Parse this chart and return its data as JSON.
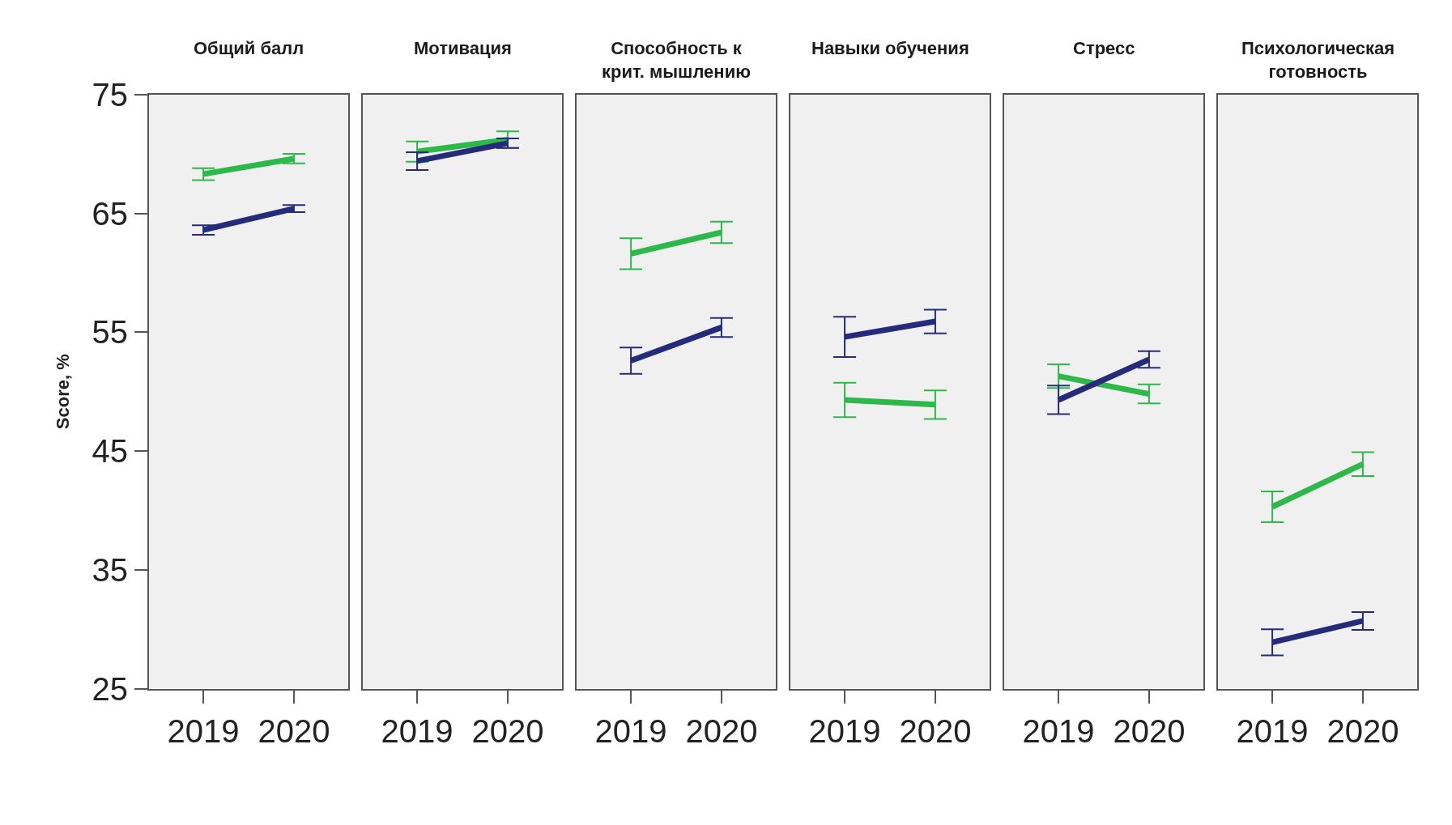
{
  "chart_data": [
    {
      "type": "line",
      "title": "Общий балл",
      "ylabel": "Score, %",
      "categories": [
        "2019",
        "2020"
      ],
      "ylim": [
        25,
        75
      ],
      "yticks": [
        25,
        35,
        45,
        55,
        65,
        75
      ],
      "grid": false,
      "marker": "none",
      "line_style": "solid",
      "series": [
        {
          "color": "#2db84a",
          "values": [
            68.3,
            69.6
          ],
          "errors": [
            0.5,
            0.4
          ]
        },
        {
          "color": "#262a7a",
          "values": [
            63.6,
            65.4
          ],
          "errors": [
            0.4,
            0.3
          ]
        }
      ]
    },
    {
      "type": "line",
      "title": "Мотивация",
      "categories": [
        "2019",
        "2020"
      ],
      "ylim": [
        25,
        75
      ],
      "yticks": [
        25,
        35,
        45,
        55,
        65,
        75
      ],
      "tick_labels": "x",
      "grid": false,
      "marker": "none",
      "line_style": "solid",
      "series": [
        {
          "color": "#2db84a",
          "values": [
            70.2,
            71.2
          ],
          "errors": [
            0.85,
            0.7
          ]
        },
        {
          "color": "#262a7a",
          "values": [
            69.4,
            70.9
          ],
          "errors": [
            0.75,
            0.4
          ]
        }
      ]
    },
    {
      "type": "line",
      "title": "Способность к\nкрит. мышлению",
      "categories": [
        "2019",
        "2020"
      ],
      "ylim": [
        25,
        75
      ],
      "yticks": [
        25,
        35,
        45,
        55,
        65,
        75
      ],
      "tick_labels": "x",
      "grid": false,
      "marker": "none",
      "line_style": "solid",
      "series": [
        {
          "color": "#2db84a",
          "values": [
            61.6,
            63.4
          ],
          "errors": [
            1.3,
            0.9
          ]
        },
        {
          "color": "#262a7a",
          "values": [
            52.6,
            55.4
          ],
          "errors": [
            1.1,
            0.8
          ]
        }
      ]
    },
    {
      "type": "line",
      "title": "Навыки обучения",
      "categories": [
        "2019",
        "2020"
      ],
      "ylim": [
        25,
        75
      ],
      "yticks": [
        25,
        35,
        45,
        55,
        65,
        75
      ],
      "tick_labels": "x",
      "grid": false,
      "marker": "none",
      "line_style": "solid",
      "series": [
        {
          "color": "#2db84a",
          "values": [
            49.3,
            48.9
          ],
          "errors": [
            1.45,
            1.2
          ]
        },
        {
          "color": "#262a7a",
          "values": [
            54.6,
            55.9
          ],
          "errors": [
            1.7,
            1.0
          ]
        }
      ]
    },
    {
      "type": "line",
      "title": "Стресс",
      "categories": [
        "2019",
        "2020"
      ],
      "ylim": [
        25,
        75
      ],
      "yticks": [
        25,
        35,
        45,
        55,
        65,
        75
      ],
      "tick_labels": "x",
      "grid": false,
      "marker": "none",
      "line_style": "solid",
      "series": [
        {
          "color": "#2db84a",
          "values": [
            51.3,
            49.8
          ],
          "errors": [
            1.0,
            0.8
          ]
        },
        {
          "color": "#262a7a",
          "values": [
            49.3,
            52.7
          ],
          "errors": [
            1.2,
            0.7
          ]
        }
      ]
    },
    {
      "type": "line",
      "title": "Психологическая\nготовность",
      "categories": [
        "2019",
        "2020"
      ],
      "ylim": [
        25,
        75
      ],
      "yticks": [
        25,
        35,
        45,
        55,
        65,
        75
      ],
      "tick_labels": "x",
      "grid": false,
      "marker": "none",
      "line_style": "solid",
      "series": [
        {
          "color": "#2db84a",
          "values": [
            40.3,
            43.9
          ],
          "errors": [
            1.3,
            1.0
          ]
        },
        {
          "color": "#262a7a",
          "values": [
            28.9,
            30.7
          ],
          "errors": [
            1.1,
            0.75
          ]
        }
      ]
    }
  ]
}
